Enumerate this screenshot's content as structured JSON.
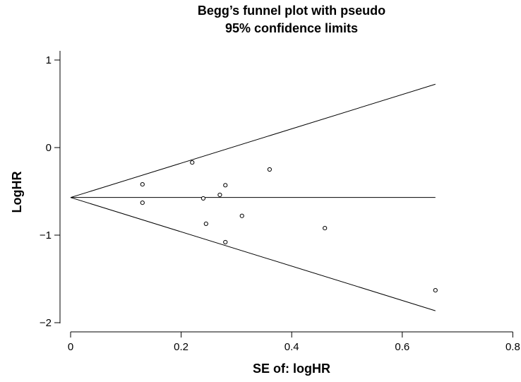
{
  "chart_data": {
    "type": "scatter",
    "title_lines": [
      "Begg’s funnel plot with pseudo",
      "95% confidence limits"
    ],
    "xlabel": "SE of: logHR",
    "ylabel": "LogHR",
    "xlim": [
      0,
      0.8
    ],
    "ylim": [
      -2,
      1
    ],
    "x_ticks": [
      0,
      0.2,
      0.4,
      0.6,
      0.8
    ],
    "x_tick_labels": [
      "0",
      "0.2",
      "0.4",
      "0.6",
      "0.8"
    ],
    "y_ticks": [
      1,
      0,
      -1,
      -2
    ],
    "y_tick_labels": [
      "1",
      "0",
      "−1",
      "−2"
    ],
    "grid": false,
    "legend": "none",
    "pooled_estimate": -0.57,
    "line_x_max": 0.66,
    "points": [
      {
        "x": 0.13,
        "y": -0.42
      },
      {
        "x": 0.13,
        "y": -0.63
      },
      {
        "x": 0.22,
        "y": -0.17
      },
      {
        "x": 0.24,
        "y": -0.58
      },
      {
        "x": 0.245,
        "y": -0.87
      },
      {
        "x": 0.27,
        "y": -0.54
      },
      {
        "x": 0.28,
        "y": -0.43
      },
      {
        "x": 0.28,
        "y": -1.08
      },
      {
        "x": 0.31,
        "y": -0.78
      },
      {
        "x": 0.36,
        "y": -0.25
      },
      {
        "x": 0.46,
        "y": -0.92
      },
      {
        "x": 0.66,
        "y": -1.63
      }
    ],
    "colors": {
      "line": "#000000",
      "marker_edge": "#000000",
      "marker_fill": "#ffffff"
    }
  }
}
